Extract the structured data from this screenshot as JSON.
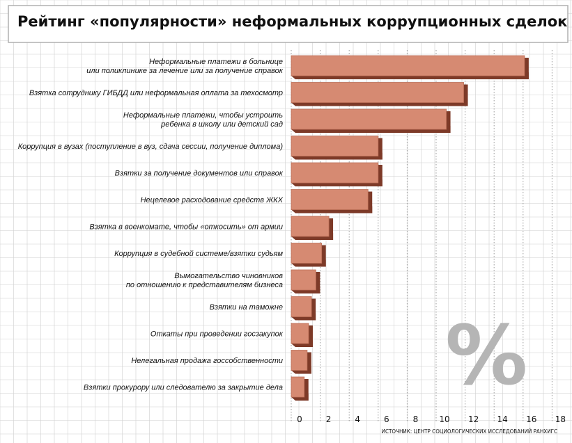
{
  "chart_data": {
    "type": "bar",
    "orientation": "horizontal",
    "title": "Рейтинг «популярности» неформальных коррупционных сделок в РФ",
    "categories": [
      [
        "Неформальные платежи в больнице",
        "или поликлинике за лечение или за получение справок"
      ],
      [
        "Взятка сотруднику ГИБДД или неформальная оплата за техосмотр"
      ],
      [
        "Неформальные платежи, чтобы устроить",
        "ребенка в школу или детский сад"
      ],
      [
        "Коррупция в вузах (поступление в вуз, сдача сессии, получение диплома)"
      ],
      [
        "Взятки за получение документов или справок"
      ],
      [
        "Нецелевое расходование средств ЖКХ"
      ],
      [
        "Взятка в военкомате, чтобы «откосить» от армии"
      ],
      [
        "Коррупция в судебной системе/взятки судьям"
      ],
      [
        "Вымогательство чиновников",
        "по отношению к представителям бизнеса"
      ],
      [
        "Взятки на таможне"
      ],
      [
        "Откаты при проведении госзакупок"
      ],
      [
        "Нелегальная продажа госсобственности"
      ],
      [
        "Взятки прокурору или следователю за закрытие дела"
      ]
    ],
    "values": [
      16.1,
      11.9,
      10.7,
      6.0,
      6.0,
      5.3,
      2.6,
      2.1,
      1.7,
      1.4,
      1.2,
      1.1,
      0.9
    ],
    "xticks": [
      0,
      2,
      4,
      6,
      8,
      10,
      12,
      14,
      16,
      18
    ],
    "xlim": [
      0,
      18
    ],
    "grid": true,
    "watermark": "%",
    "source": "ИСТОЧНИК: ЦЕНТР СОЦИОЛОГИЧЕСКИХ ИССЛЕДОВАНИЙ РАНХИГС",
    "colors": {
      "bar_face": "#d68a72",
      "bar_edge": "#bb6e57",
      "bar_shadow": "#7d3a28",
      "grid": "#9a9a9a",
      "watermark": "#b5b5b5"
    }
  }
}
